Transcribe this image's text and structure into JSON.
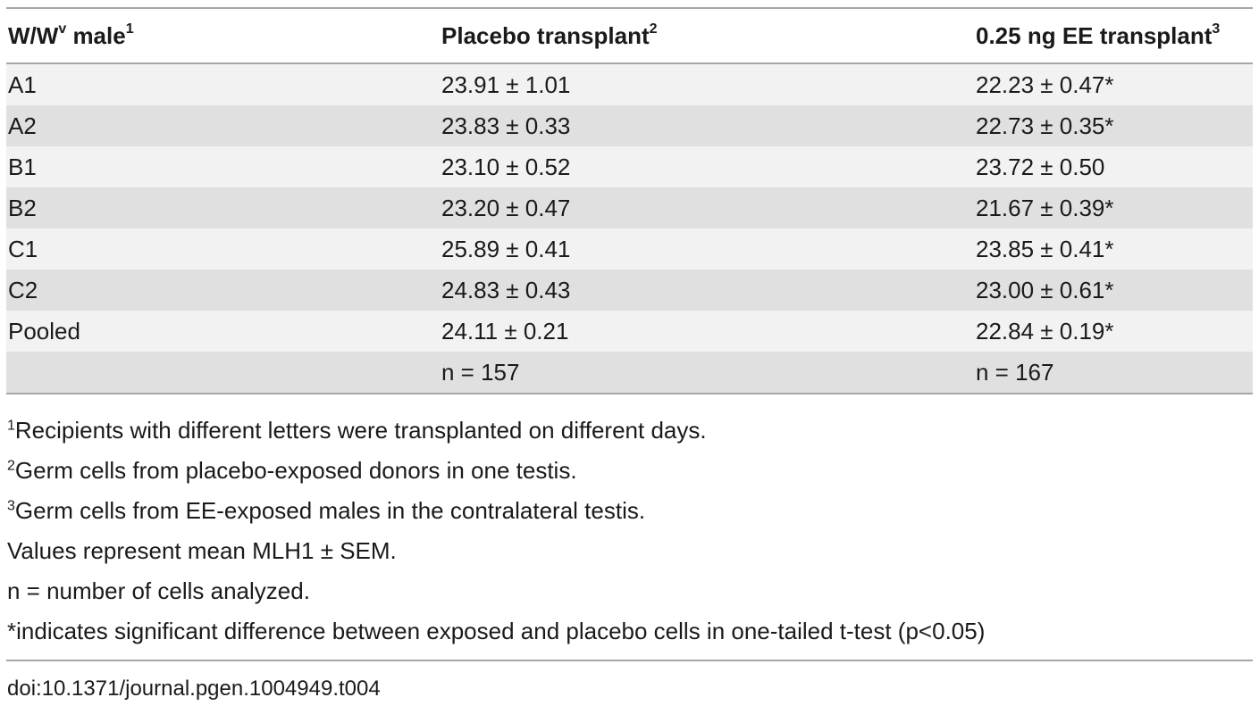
{
  "table": {
    "headers": [
      {
        "label": "W/W",
        "sup_inline": "v",
        "label_after": " male",
        "footnote_mark": "1"
      },
      {
        "label": "Placebo transplant",
        "footnote_mark": "2"
      },
      {
        "label": "0.25 ng EE transplant",
        "footnote_mark": "3"
      }
    ],
    "rows": [
      [
        "A1",
        "23.91 ± 1.01",
        "22.23 ± 0.47*"
      ],
      [
        "A2",
        "23.83 ± 0.33",
        "22.73 ± 0.35*"
      ],
      [
        "B1",
        "23.10 ± 0.52",
        "23.72 ± 0.50"
      ],
      [
        "B2",
        "23.20 ± 0.47",
        "21.67 ± 0.39*"
      ],
      [
        "C1",
        "25.89 ± 0.41",
        "23.85 ± 0.41*"
      ],
      [
        "C2",
        "24.83 ± 0.43",
        "23.00 ± 0.61*"
      ],
      [
        "Pooled",
        "24.11 ± 0.21",
        "22.84 ± 0.19*"
      ],
      [
        "",
        "n = 157",
        "n = 167"
      ]
    ]
  },
  "footnotes": [
    {
      "mark": "1",
      "text": "Recipients with different letters were transplanted on different days."
    },
    {
      "mark": "2",
      "text": "Germ cells from placebo-exposed donors in one testis."
    },
    {
      "mark": "3",
      "text": "Germ cells from EE-exposed males in the contralateral testis."
    },
    {
      "mark": "",
      "text": "Values represent mean MLH1 ± SEM."
    },
    {
      "mark": "",
      "text": "n = number of cells analyzed."
    },
    {
      "mark": "",
      "text": "*indicates significant difference between exposed and placebo cells in one-tailed t-test (p<0.05)"
    }
  ],
  "doi": "doi:10.1371/journal.pgen.1004949.t004"
}
